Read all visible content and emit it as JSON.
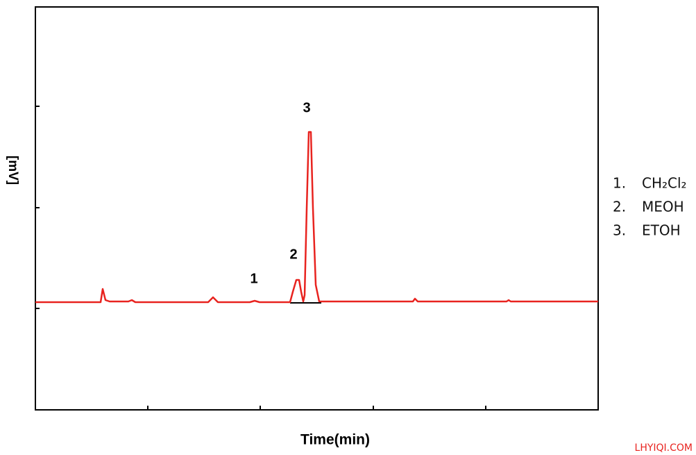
{
  "axes": {
    "y_label": "[mV]",
    "x_label": "Time(min)"
  },
  "peaks": [
    "1",
    "2",
    "3"
  ],
  "legend": [
    {
      "number": "1.",
      "name": "CH₂Cl₂"
    },
    {
      "number": "2.",
      "name": "MEOH"
    },
    {
      "number": "3.",
      "name": "ETOH"
    }
  ],
  "watermark": "LHYIQI.COM"
}
